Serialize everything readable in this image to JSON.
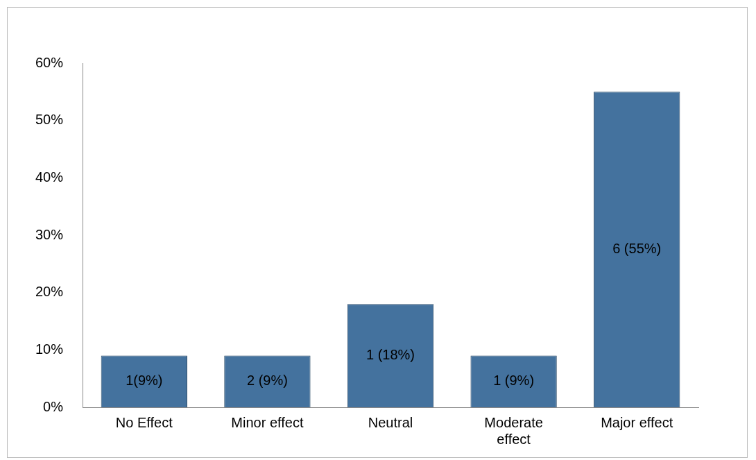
{
  "chart_data": {
    "type": "bar",
    "categories": [
      "No Effect",
      "Minor effect",
      "Neutral",
      "Moderate effect",
      "Major effect"
    ],
    "values": [
      9,
      9,
      18,
      9,
      55
    ],
    "value_labels": [
      "1(9%)",
      "2 (9%)",
      "1 (18%)",
      "1 (9%)",
      "6 (55%)"
    ],
    "color": "#44729e",
    "ylim": [
      0,
      60
    ],
    "yticks": [
      {
        "value": 0,
        "label": "0%"
      },
      {
        "value": 10,
        "label": "10%"
      },
      {
        "value": 20,
        "label": "20%"
      },
      {
        "value": 30,
        "label": "30%"
      },
      {
        "value": 40,
        "label": "40%"
      },
      {
        "value": 50,
        "label": "50%"
      },
      {
        "value": 60,
        "label": "60%"
      }
    ]
  }
}
